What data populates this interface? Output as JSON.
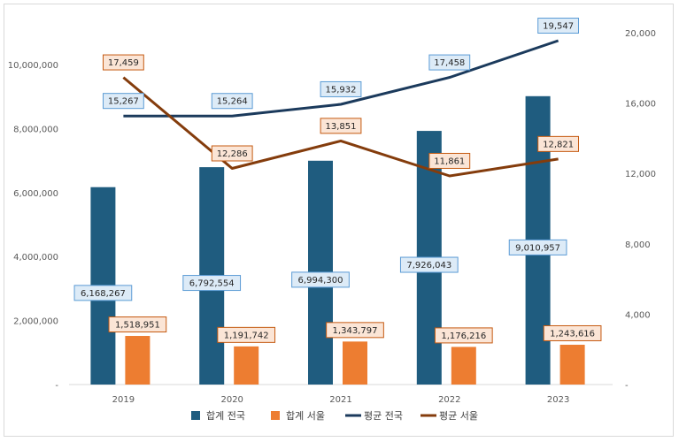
{
  "chart_data": {
    "type": "bar",
    "categories": [
      "2019",
      "2020",
      "2021",
      "2022",
      "2023"
    ],
    "y_left": {
      "ticks": [
        "-",
        "2,000,000",
        "4,000,000",
        "6,000,000",
        "8,000,000",
        "10,000,000"
      ],
      "range": [
        0,
        11000000
      ]
    },
    "y_right": {
      "ticks": [
        "-",
        "4,000",
        "8,000",
        "12,000",
        "16,000",
        "20,000"
      ],
      "range": [
        0,
        20000
      ]
    },
    "grid": false,
    "legend_position": "bottom",
    "series": [
      {
        "name": "합계 전국",
        "type": "bar",
        "axis": "left",
        "color": "#1F5C7F",
        "values": [
          6168267,
          6792554,
          6994300,
          7926043,
          9010957
        ],
        "labels": [
          "6,168,267",
          "6,792,554",
          "6,994,300",
          "7,926,043",
          "9,010,957"
        ]
      },
      {
        "name": "합계 서울",
        "type": "bar",
        "axis": "left",
        "color": "#ED7D31",
        "values": [
          1518951,
          1191742,
          1343797,
          1176216,
          1243616
        ],
        "labels": [
          "1,518,951",
          "1,191,742",
          "1,343,797",
          "1,176,216",
          "1,243,616"
        ]
      },
      {
        "name": "평균 전국",
        "type": "line",
        "axis": "right",
        "color": "#1B3A5C",
        "values": [
          15267,
          15264,
          15932,
          17458,
          19547
        ],
        "labels": [
          "15,267",
          "15,264",
          "15,932",
          "17,458",
          "19,547"
        ]
      },
      {
        "name": "평균 서울",
        "type": "line",
        "axis": "right",
        "color": "#843C0C",
        "values": [
          17459,
          12286,
          13851,
          11861,
          12821
        ],
        "labels": [
          "17,459",
          "12,286",
          "13,851",
          "11,861",
          "12,821"
        ]
      }
    ],
    "label_styles": {
      "blue": {
        "fill": "#DDEBF7",
        "stroke": "#5B9BD5"
      },
      "orange": {
        "fill": "#FBE5D6",
        "stroke": "#C55A11"
      }
    }
  }
}
